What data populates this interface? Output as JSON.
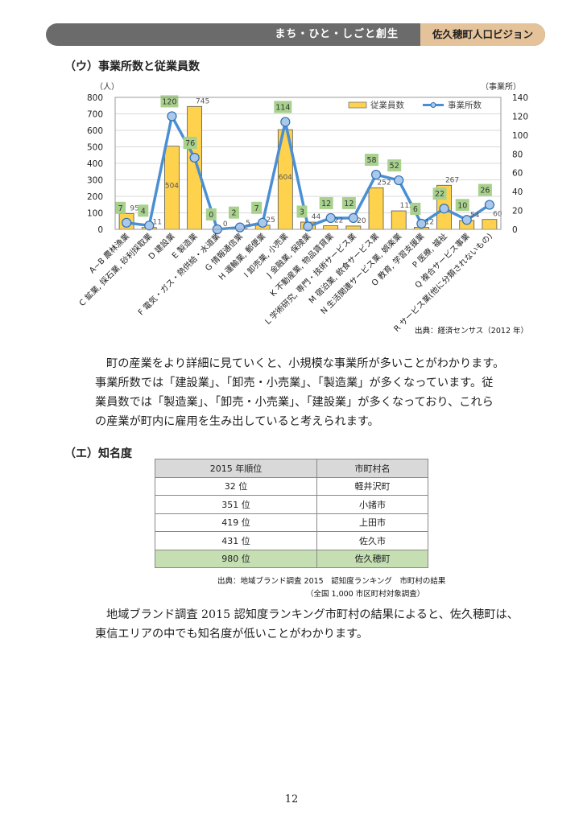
{
  "header": {
    "section": "まち・ひと・しごと創生",
    "document": "佐久穂町人口ビジョン"
  },
  "section_u": {
    "title": "（ウ）事業所数と従業員数"
  },
  "chart_data": {
    "type": "bar+line",
    "categories": [
      "A~B 農林漁業",
      "C 鉱業, 採石業, 砂利採取業",
      "D 建設業",
      "E 製造業",
      "F 電気・ガス・熱供給・水道業",
      "G 情報通信業",
      "H 運輸業, 郵便業",
      "I 卸売業, 小売業",
      "J 金融業, 保険業",
      "K 不動産業, 物品賃貸業",
      "L 学術研究, 専門・技術サービス業",
      "M 宿泊業, 飲食サービス業",
      "N 生活関連サービス業, 娯楽業",
      "O 教育, 学習支援業",
      "P 医療, 福祉",
      "Q 複合サービス事業",
      "R サービス業(他に分類されないもの)"
    ],
    "series": [
      {
        "name": "従業員数",
        "type": "bar",
        "axis": "left",
        "color": "#ffd24d",
        "values": [
          95,
          11,
          504,
          745,
          0,
          5,
          25,
          604,
          44,
          22,
          20,
          252,
          112,
          12,
          267,
          54,
          60
        ]
      },
      {
        "name": "事業所数",
        "type": "line",
        "axis": "right",
        "color": "#4a8fd4",
        "values": [
          7,
          4,
          120,
          76,
          0,
          2,
          7,
          114,
          3,
          12,
          12,
          58,
          52,
          6,
          22,
          10,
          26
        ]
      }
    ],
    "ylabel_left": "（人）",
    "ylim_left": [
      0,
      800
    ],
    "yticks_left": [
      0,
      100,
      200,
      300,
      400,
      500,
      600,
      700,
      800
    ],
    "ylabel_right": "（事業所）",
    "ylim_right": [
      0,
      140
    ],
    "yticks_right": [
      0,
      20,
      40,
      60,
      80,
      100,
      120,
      140
    ],
    "grid": true,
    "legend": "top-right",
    "source": "出典：経済センサス（2012 年）"
  },
  "paragraph1": [
    "町の産業をより詳細に見ていくと、小規模な事業所が多いことがわかります。",
    "事業所数では「建設業」、「卸売・小売業」、「製造業」が多くなっています。従",
    "業員数では「製造業」、「卸売・小売業」、「建設業」が多くなっており、これら",
    "の産業が町内に雇用を生み出していると考えられます。"
  ],
  "section_e": {
    "title": "（エ）知名度"
  },
  "table": {
    "headers": [
      "2015 年順位",
      "市町村名"
    ],
    "rows": [
      [
        "32 位",
        "軽井沢町"
      ],
      [
        "351 位",
        "小諸市"
      ],
      [
        "419 位",
        "上田市"
      ],
      [
        "431 位",
        "佐久市"
      ],
      [
        "980 位",
        "佐久穂町"
      ]
    ],
    "highlight_color": "#c5dfb3"
  },
  "table_source": [
    "出典：地域ブランド調査 2015　認知度ランキング　市町村の結果",
    "（全国 1,000 市区町村対象調査）"
  ],
  "paragraph2": [
    "地域ブランド調査 2015 認知度ランキング市町村の結果によると、佐久穂町は、",
    "東信エリアの中でも知名度が低いことがわかります。"
  ],
  "page_number": "12"
}
